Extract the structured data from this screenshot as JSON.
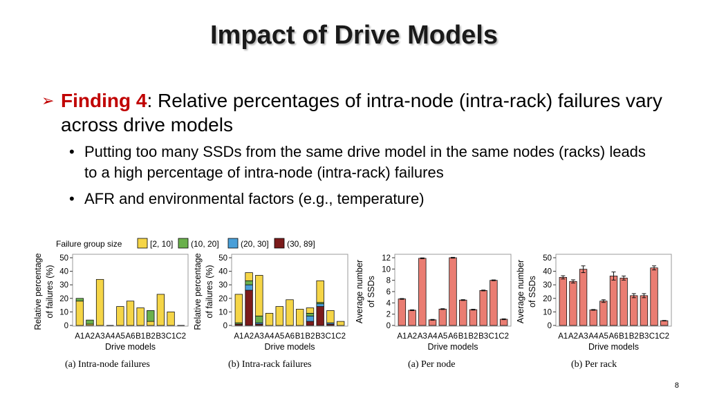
{
  "slide": {
    "title": "Impact of Drive Models",
    "finding_label": "Finding 4",
    "finding_text": ": Relative percentages of intra-node (intra-rack) failures vary across drive models",
    "bullets": [
      "Putting too many SSDs from the same drive model in the same nodes (racks) leads to a high percentage of intra-node (intra-rack) failures",
      "AFR and environmental factors (e.g., temperature)"
    ],
    "page_number": "8"
  },
  "legend": {
    "title": "Failure group size",
    "items": [
      {
        "label": "[2, 10]",
        "color": "#f5d547"
      },
      {
        "label": "(10, 20]",
        "color": "#6ab04c"
      },
      {
        "label": "(20, 30]",
        "color": "#4a9fd8"
      },
      {
        "label": "(30, 89]",
        "color": "#7b1b1b"
      }
    ]
  },
  "chart_data": [
    {
      "type": "bar",
      "stacked": true,
      "caption": "(a) Intra-node failures",
      "xlabel": "Drive models",
      "ylabel": "Relative percentage of failures (%)",
      "categories": [
        "A1",
        "A2",
        "A3",
        "A4",
        "A5",
        "A6",
        "B1",
        "B2",
        "B3",
        "C1",
        "C2"
      ],
      "ylim": [
        0,
        50
      ],
      "yticks": [
        0,
        10,
        20,
        30,
        40,
        50
      ],
      "series": [
        {
          "name": "[2, 10]",
          "color": "#f5d547",
          "values": [
            18,
            1,
            34,
            0,
            14,
            18,
            13,
            3,
            23,
            10,
            0
          ]
        },
        {
          "name": "(10, 20]",
          "color": "#6ab04c",
          "values": [
            2,
            3,
            0,
            0,
            0,
            0,
            0,
            8,
            0,
            0,
            0
          ]
        },
        {
          "name": "(20, 30]",
          "color": "#4a9fd8",
          "values": [
            0,
            0,
            0,
            0,
            0,
            0,
            0,
            0,
            0,
            0,
            0
          ]
        },
        {
          "name": "(30, 89]",
          "color": "#7b1b1b",
          "values": [
            0,
            0,
            0,
            0,
            0,
            0,
            0,
            0,
            0,
            0,
            0
          ]
        }
      ]
    },
    {
      "type": "bar",
      "stacked": true,
      "caption": "(b) Intra-rack failures",
      "xlabel": "Drive models",
      "ylabel": "Relative percentage of failures (%)",
      "categories": [
        "A1",
        "A2",
        "A3",
        "A4",
        "A5",
        "A6",
        "B1",
        "B2",
        "B3",
        "C1",
        "C2"
      ],
      "ylim": [
        0,
        50
      ],
      "yticks": [
        0,
        10,
        20,
        30,
        40,
        50
      ],
      "series": [
        {
          "name": "(30, 89]",
          "color": "#7b1b1b",
          "values": [
            1,
            26,
            1,
            0,
            0,
            0,
            0,
            3,
            14,
            1,
            0
          ]
        },
        {
          "name": "(20, 30]",
          "color": "#4a9fd8",
          "values": [
            0,
            4,
            1,
            0,
            0,
            0,
            0,
            4,
            2,
            1,
            0
          ]
        },
        {
          "name": "(10, 20]",
          "color": "#6ab04c",
          "values": [
            1,
            3,
            5,
            0,
            0,
            0,
            0,
            2,
            1,
            0,
            0
          ]
        },
        {
          "name": "[2, 10]",
          "color": "#f5d547",
          "values": [
            21,
            6,
            30,
            9,
            14,
            19,
            12,
            4,
            16,
            9,
            3
          ]
        }
      ]
    },
    {
      "type": "bar",
      "caption": "(a) Per node",
      "xlabel": "Drive models",
      "ylabel": "Average number of SSDs",
      "categories": [
        "A1",
        "A2",
        "A3",
        "A4",
        "A5",
        "A6",
        "B1",
        "B2",
        "B3",
        "C1",
        "C2"
      ],
      "ylim": [
        0,
        12
      ],
      "yticks": [
        0,
        2,
        4,
        6,
        8,
        10,
        12
      ],
      "error_bars": true,
      "series": [
        {
          "color": "#ea7d72",
          "values": [
            4.7,
            2.7,
            11.9,
            1.0,
            2.9,
            12.0,
            4.5,
            2.8,
            6.2,
            8.0,
            1.1
          ]
        }
      ]
    },
    {
      "type": "bar",
      "caption": "(b) Per rack",
      "xlabel": "Drive models",
      "ylabel": "Average number of SSDs",
      "categories": [
        "A1",
        "A2",
        "A3",
        "A4",
        "A5",
        "A6",
        "B1",
        "B2",
        "B3",
        "C1",
        "C2"
      ],
      "ylim": [
        0,
        50
      ],
      "yticks": [
        0,
        10,
        20,
        30,
        40,
        50
      ],
      "error_bars": true,
      "series": [
        {
          "color": "#ea7d72",
          "values": [
            35.5,
            32.5,
            41.5,
            11.5,
            18.0,
            36.5,
            35.0,
            22.0,
            22.0,
            42.5,
            3.5
          ],
          "errors": [
            1.2,
            1.2,
            2.5,
            0.3,
            1.0,
            3.0,
            1.5,
            1.5,
            1.5,
            1.5,
            0.2
          ]
        }
      ]
    }
  ]
}
